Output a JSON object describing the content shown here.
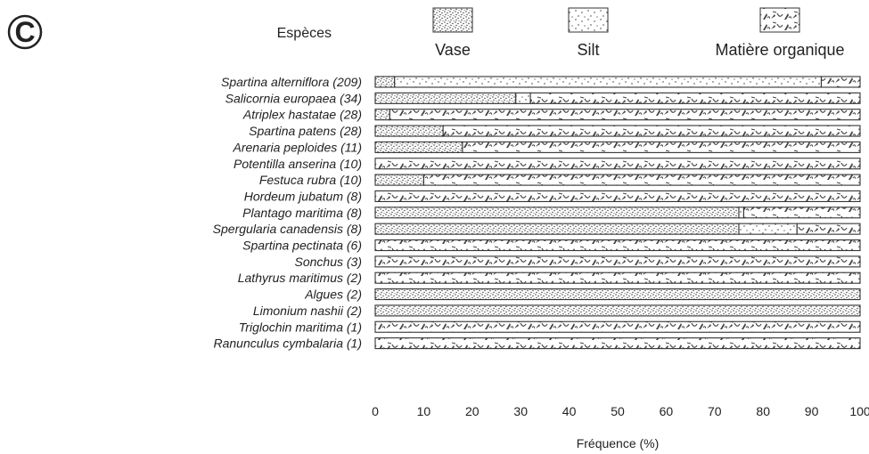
{
  "panel_letter": "C",
  "colors": {
    "axis": "#444444",
    "bar_fill_bg": "#ffffff",
    "bar_stroke": "#333333",
    "pattern_ink": "#333333"
  },
  "chart_data": {
    "type": "bar",
    "orientation": "horizontal",
    "stacked": true,
    "legend_title": "Espèces",
    "legend_position": "top",
    "xlabel": "Fréquence (%)",
    "ylabel": "",
    "xlim": [
      0,
      100
    ],
    "xticks": [
      0,
      10,
      20,
      30,
      40,
      50,
      60,
      70,
      80,
      90,
      100
    ],
    "xtick_labels": [
      "0",
      "10",
      "20",
      "30",
      "40",
      "50",
      "60",
      "70",
      "80",
      "90",
      "100"
    ],
    "grid": false,
    "categories": [
      "Spartina alterniflora (209)",
      "Salicornia europaea (34)",
      "Atriplex hastatae (28)",
      "Spartina patens (28)",
      "Arenaria peploides (11)",
      "Potentilla anserina (10)",
      "Festuca rubra (10)",
      "Hordeum jubatum (8)",
      "Plantago maritima (8)",
      "Spergularia canadensis (8)",
      "Spartina pectinata (6)",
      "Sonchus (3)",
      "Lathyrus maritimus (2)",
      "Algues (2)",
      "Limonium nashii (2)",
      "Triglochin maritima (1)",
      "Ranunculus cymbalaria (1)"
    ],
    "series": [
      {
        "name": "Vase",
        "pattern": "dense-dots",
        "values": [
          4,
          29,
          3,
          14,
          18,
          0,
          10,
          0,
          75,
          75,
          0,
          0,
          0,
          100,
          100,
          0,
          0
        ]
      },
      {
        "name": "Silt",
        "pattern": "sparse-dots",
        "values": [
          88,
          3,
          0,
          0,
          0,
          0,
          0,
          0,
          1,
          12,
          0,
          0,
          0,
          0,
          0,
          0,
          0
        ]
      },
      {
        "name": "Matière organique",
        "pattern": "organic-flecks",
        "values": [
          8,
          68,
          97,
          86,
          82,
          100,
          90,
          100,
          24,
          13,
          100,
          100,
          100,
          0,
          0,
          100,
          100
        ]
      }
    ]
  }
}
